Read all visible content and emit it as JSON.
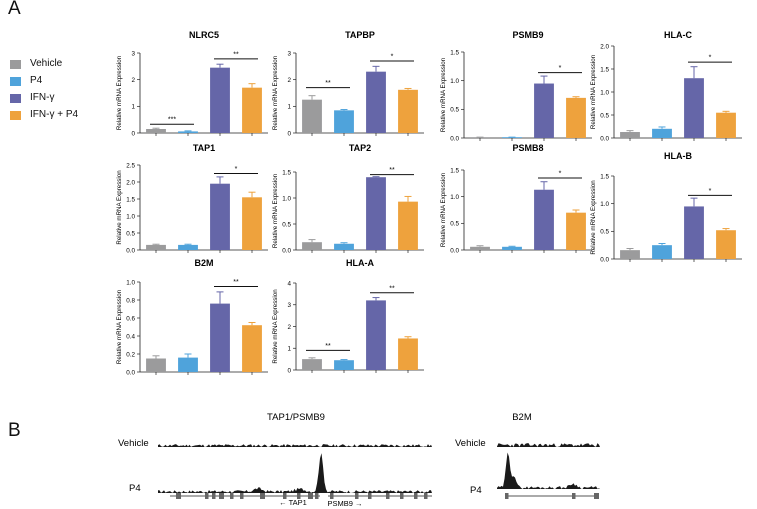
{
  "panel_a_label": "A",
  "panel_b_label": "B",
  "legend": [
    {
      "label": "Vehicle",
      "color": "#9b9b9c"
    },
    {
      "label": "P4",
      "color": "#4fa3db"
    },
    {
      "label": "IFN-γ",
      "color": "#6566a8"
    },
    {
      "label": "IFN-γ + P4",
      "color": "#eea23d"
    }
  ],
  "chart_data": [
    {
      "type": "bar",
      "title": "NLRC5",
      "ylabel": "Relative mRNA Expression",
      "ylim": [
        0,
        3
      ],
      "yticks": [
        "0",
        "1",
        "2",
        "3"
      ],
      "categories": [
        "Vehicle",
        "P4",
        "IFN-γ",
        "IFN-γ + P4"
      ],
      "values": [
        0.15,
        0.06,
        2.45,
        1.7
      ],
      "errors": [
        0.03,
        0.02,
        0.13,
        0.15
      ],
      "annotations": [
        {
          "text": "***",
          "from": 0,
          "to": 1,
          "y": 0.33
        },
        {
          "text": "**",
          "from": 2,
          "to": 3,
          "y": 2.78
        }
      ]
    },
    {
      "type": "bar",
      "title": "TAPBP",
      "ylabel": "Relative mRNA Expression",
      "ylim": [
        0,
        3
      ],
      "yticks": [
        "0",
        "1",
        "2",
        "3"
      ],
      "categories": [
        "Vehicle",
        "P4",
        "IFN-γ",
        "IFN-γ + P4"
      ],
      "values": [
        1.25,
        0.85,
        2.3,
        1.62
      ],
      "errors": [
        0.15,
        0.03,
        0.2,
        0.05
      ],
      "annotations": [
        {
          "text": "**",
          "from": 0,
          "to": 1,
          "y": 1.7
        },
        {
          "text": "*",
          "from": 2,
          "to": 3,
          "y": 2.7
        }
      ]
    },
    {
      "type": "bar",
      "title": "PSMB9",
      "ylabel": "Relative mRNA Expression",
      "ylim": [
        0,
        1.5
      ],
      "yticks": [
        "0.0",
        "0.5",
        "1.0",
        "1.5"
      ],
      "categories": [
        "Vehicle",
        "P4",
        "IFN-γ",
        "IFN-γ + P4"
      ],
      "values": [
        0.01,
        0.01,
        0.95,
        0.7
      ],
      "errors": [
        0.005,
        0.005,
        0.13,
        0.02
      ],
      "annotations": [
        {
          "text": "*",
          "from": 2,
          "to": 3,
          "y": 1.14
        }
      ]
    },
    {
      "type": "bar",
      "title": "HLA-C",
      "ylabel": "Relative mRNA Expression",
      "ylim": [
        0,
        2
      ],
      "yticks": [
        "0.0",
        "0.5",
        "1.0",
        "1.5",
        "2.0"
      ],
      "categories": [
        "Vehicle",
        "P4",
        "IFN-γ",
        "IFN-γ + P4"
      ],
      "values": [
        0.13,
        0.2,
        1.3,
        0.55
      ],
      "errors": [
        0.03,
        0.04,
        0.25,
        0.03
      ],
      "annotations": [
        {
          "text": "*",
          "from": 2,
          "to": 3,
          "y": 1.65
        }
      ]
    },
    {
      "type": "bar",
      "title": "TAP1",
      "ylabel": "Relative mRNA Expression",
      "ylim": [
        0,
        2.5
      ],
      "yticks": [
        "0.0",
        "0.5",
        "1.0",
        "1.5",
        "2.0",
        "2.5"
      ],
      "categories": [
        "Vehicle",
        "P4",
        "IFN-γ",
        "IFN-γ + P4"
      ],
      "values": [
        0.15,
        0.15,
        1.95,
        1.55
      ],
      "errors": [
        0.02,
        0.02,
        0.2,
        0.15
      ],
      "annotations": [
        {
          "text": "*",
          "from": 2,
          "to": 3,
          "y": 2.25
        }
      ]
    },
    {
      "type": "bar",
      "title": "TAP2",
      "ylabel": "Relative mRNA Expression",
      "ylim": [
        0,
        1.5
      ],
      "yticks": [
        "0.0",
        "0.5",
        "1.0",
        "1.5"
      ],
      "categories": [
        "Vehicle",
        "P4",
        "IFN-γ",
        "IFN-γ + P4"
      ],
      "values": [
        0.15,
        0.12,
        1.4,
        0.93
      ],
      "errors": [
        0.05,
        0.02,
        0.01,
        0.1
      ],
      "annotations": [
        {
          "text": "**",
          "from": 2,
          "to": 3,
          "y": 1.45
        }
      ]
    },
    {
      "type": "bar",
      "title": "PSMB8",
      "ylabel": "Relative mRNA Expression",
      "ylim": [
        0,
        1.5
      ],
      "yticks": [
        "0.0",
        "0.5",
        "1.0",
        "1.5"
      ],
      "categories": [
        "Vehicle",
        "P4",
        "IFN-γ",
        "IFN-γ + P4"
      ],
      "values": [
        0.06,
        0.06,
        1.13,
        0.7
      ],
      "errors": [
        0.02,
        0.01,
        0.15,
        0.05
      ],
      "annotations": [
        {
          "text": "*",
          "from": 2,
          "to": 3,
          "y": 1.35
        }
      ]
    },
    {
      "type": "bar",
      "title": "HLA-B",
      "ylabel": "Relative mRNA Expression",
      "ylim": [
        0,
        1.5
      ],
      "yticks": [
        "0.0",
        "0.5",
        "1.0",
        "1.5"
      ],
      "categories": [
        "Vehicle",
        "P4",
        "IFN-γ",
        "IFN-γ + P4"
      ],
      "values": [
        0.16,
        0.25,
        0.95,
        0.52
      ],
      "errors": [
        0.03,
        0.03,
        0.15,
        0.03
      ],
      "annotations": [
        {
          "text": "*",
          "from": 2,
          "to": 3,
          "y": 1.15
        }
      ]
    },
    {
      "type": "bar",
      "title": "B2M",
      "ylabel": "Relative mRNA Expression",
      "ylim": [
        0,
        1.0
      ],
      "yticks": [
        "0.0",
        "0.2",
        "0.4",
        "0.6",
        "0.8",
        "1.0"
      ],
      "categories": [
        "Vehicle",
        "P4",
        "IFN-γ",
        "IFN-γ + P4"
      ],
      "values": [
        0.15,
        0.16,
        0.76,
        0.52
      ],
      "errors": [
        0.03,
        0.04,
        0.13,
        0.03
      ],
      "annotations": [
        {
          "text": "**",
          "from": 2,
          "to": 3,
          "y": 0.95
        }
      ]
    },
    {
      "type": "bar",
      "title": "HLA-A",
      "ylabel": "Relative mRNA Expression",
      "ylim": [
        0,
        4
      ],
      "yticks": [
        "0",
        "1",
        "2",
        "3",
        "4"
      ],
      "categories": [
        "Vehicle",
        "P4",
        "IFN-γ",
        "IFN-γ + P4"
      ],
      "values": [
        0.5,
        0.45,
        3.2,
        1.45
      ],
      "errors": [
        0.06,
        0.03,
        0.13,
        0.08
      ],
      "annotations": [
        {
          "text": "**",
          "from": 0,
          "to": 1,
          "y": 0.9
        },
        {
          "text": "**",
          "from": 2,
          "to": 3,
          "y": 3.55
        }
      ]
    }
  ],
  "tracks": {
    "left_title": "TAP1/PSMB9",
    "right_title": "B2M",
    "row_vehicle": "Vehicle",
    "row_p4": "P4",
    "gene_tap1": "← TAP1",
    "gene_psmb9": "PSMB9 →"
  }
}
